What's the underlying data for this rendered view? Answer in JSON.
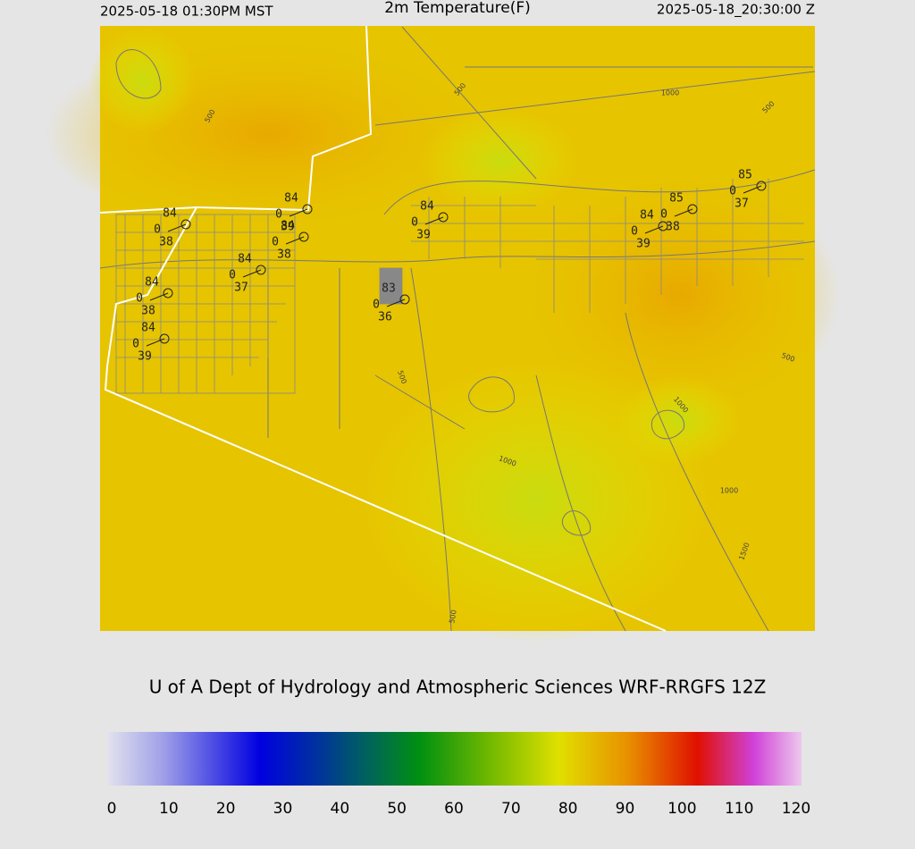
{
  "header": {
    "local_time": "2025-05-18 01:30PM MST",
    "title": "2m Temperature(F)",
    "utc_time": "2025-05-18_20:30:00 Z"
  },
  "stations": [
    {
      "temperature": 84,
      "wind": 0,
      "dewpoint": 38
    },
    {
      "temperature": 84,
      "wind": 0,
      "dewpoint": 39
    },
    {
      "temperature": 84,
      "wind": 0,
      "dewpoint": 38
    },
    {
      "temperature": 84,
      "wind": 0,
      "dewpoint": 37
    },
    {
      "temperature": 84,
      "wind": 0,
      "dewpoint": 38
    },
    {
      "temperature": 84,
      "wind": 0,
      "dewpoint": 39
    },
    {
      "temperature": 84,
      "wind": 0,
      "dewpoint": 39
    },
    {
      "temperature": 83,
      "wind": 0,
      "dewpoint": 36
    },
    {
      "temperature": 84,
      "wind": 0,
      "dewpoint": 39
    },
    {
      "temperature": 85,
      "wind": 0,
      "dewpoint": 38
    },
    {
      "temperature": 85,
      "wind": 0,
      "dewpoint": 37
    }
  ],
  "contour_labels": [
    "500",
    "500",
    "500",
    "500",
    "500",
    "500",
    "1000",
    "1000",
    "1000",
    "1000",
    "1500"
  ],
  "credit": "U of A Dept of Hydrology and Atmospheric Sciences WRF-RRGFS 12Z",
  "colorbar": {
    "ticks": [
      0,
      10,
      20,
      30,
      40,
      50,
      60,
      70,
      80,
      90,
      100,
      110,
      120
    ]
  }
}
